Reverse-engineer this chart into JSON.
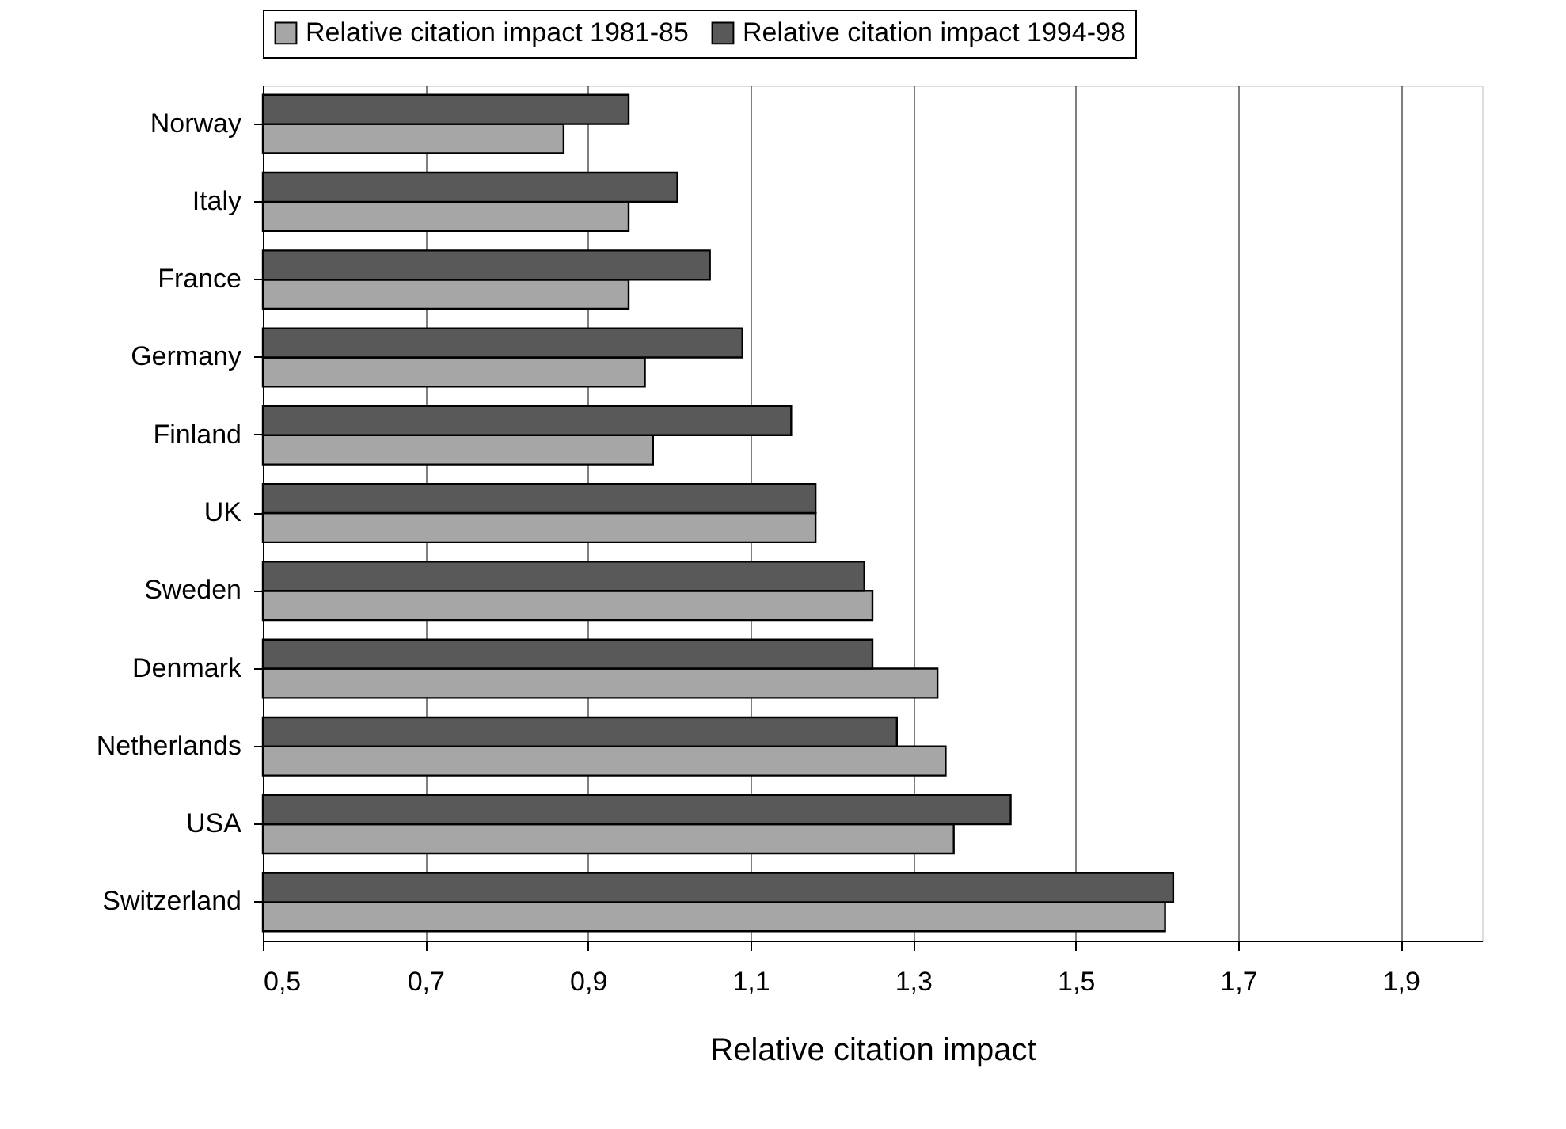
{
  "chart_data": {
    "type": "bar",
    "orientation": "horizontal",
    "xlabel": "Relative citation impact",
    "categories": [
      "Norway",
      "Italy",
      "France",
      "Germany",
      "Finland",
      "UK",
      "Sweden",
      "Denmark",
      "Netherlands",
      "USA",
      "Switzerland"
    ],
    "series": [
      {
        "name": "Relative citation impact 1981-85",
        "color": "#a6a6a6",
        "values": [
          0.87,
          0.95,
          0.95,
          0.97,
          0.98,
          1.18,
          1.25,
          1.33,
          1.34,
          1.35,
          1.61
        ]
      },
      {
        "name": "Relative citation impact 1994-98",
        "color": "#595959",
        "values": [
          0.95,
          1.01,
          1.05,
          1.09,
          1.15,
          1.18,
          1.24,
          1.25,
          1.28,
          1.42,
          1.62
        ]
      }
    ],
    "xlim": [
      0.5,
      2.0
    ],
    "xticks": [
      {
        "value": 0.5,
        "label": "0,5"
      },
      {
        "value": 0.7,
        "label": "0,7"
      },
      {
        "value": 0.9,
        "label": "0,9"
      },
      {
        "value": 1.1,
        "label": "1,1"
      },
      {
        "value": 1.3,
        "label": "1,3"
      },
      {
        "value": 1.5,
        "label": "1,5"
      },
      {
        "value": 1.7,
        "label": "1,7"
      },
      {
        "value": 1.9,
        "label": "1,9"
      }
    ],
    "grid": "x",
    "legend": "top"
  }
}
